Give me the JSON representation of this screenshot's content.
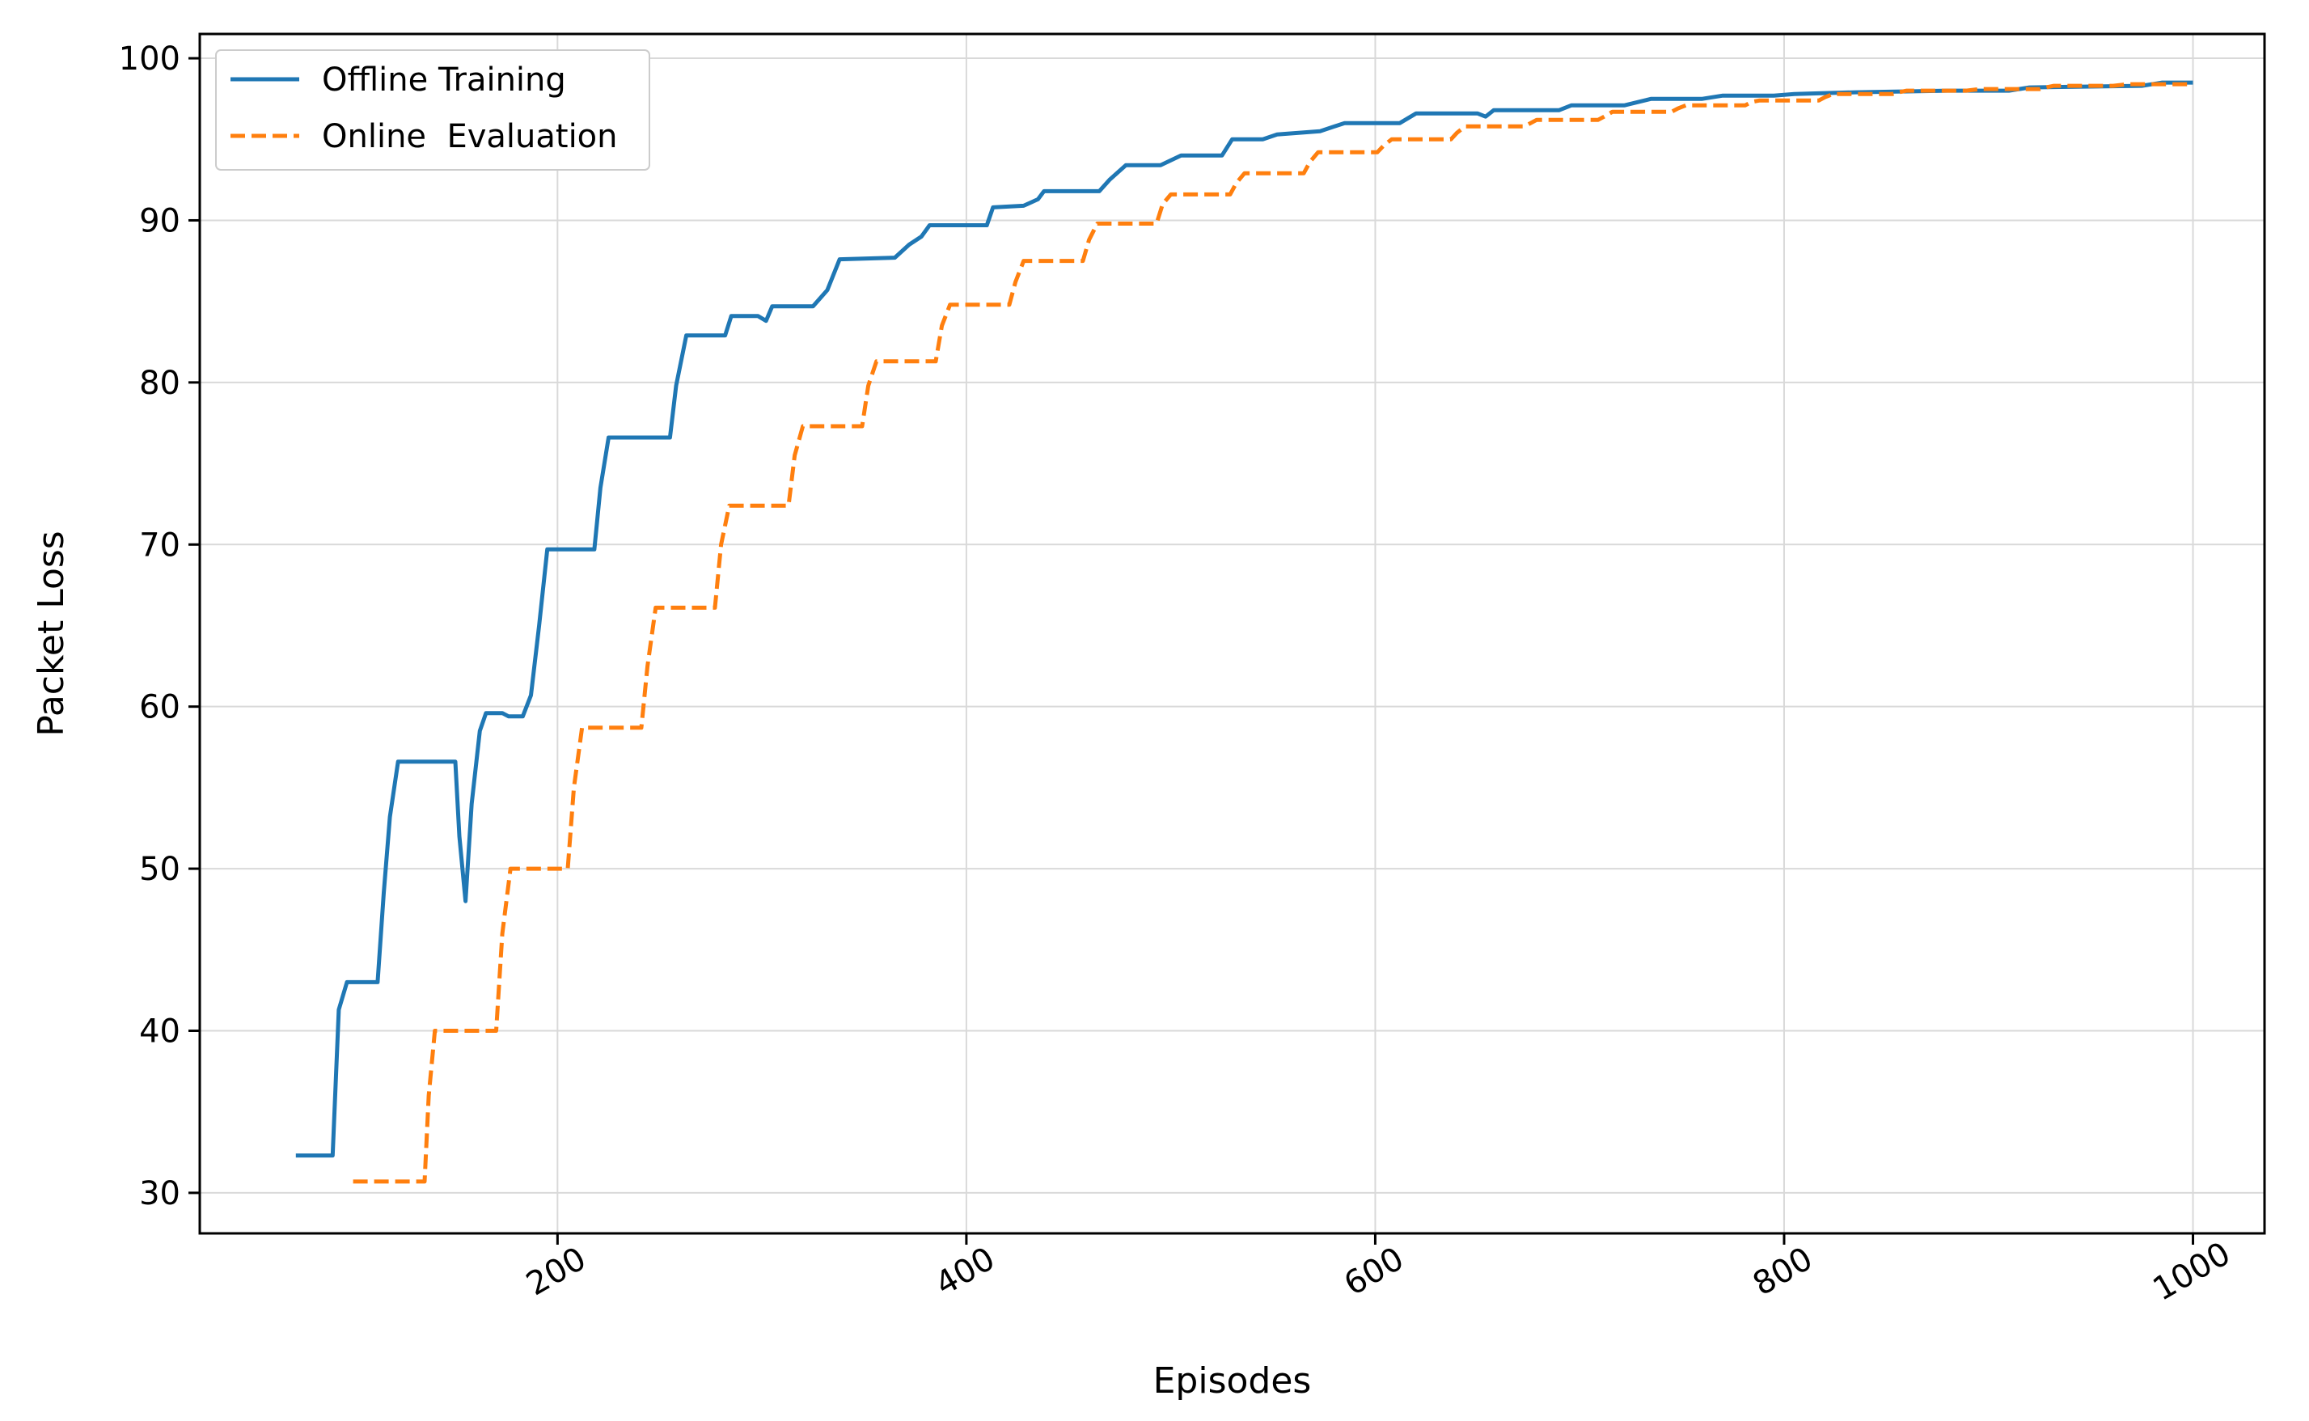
{
  "chart_data": {
    "type": "line",
    "xlabel": "Episodes",
    "ylabel": "Packet Loss",
    "xlim": [
      25,
      1035
    ],
    "ylim": [
      27.5,
      101.5
    ],
    "xticks": [
      200,
      400,
      600,
      800,
      1000
    ],
    "yticks": [
      30,
      40,
      50,
      60,
      70,
      80,
      90,
      100
    ],
    "grid": true,
    "legend_position": "top-left",
    "colors": {
      "offline": "#1f77b4",
      "online": "#ff7f0e",
      "grid": "#d9d9d9"
    },
    "series": [
      {
        "name": "Offline Training",
        "style": "solid",
        "points": [
          [
            72,
            32.3
          ],
          [
            90,
            32.3
          ],
          [
            93,
            41.3
          ],
          [
            97,
            43.0
          ],
          [
            112,
            43.0
          ],
          [
            115,
            48.5
          ],
          [
            118,
            53.2
          ],
          [
            122,
            56.6
          ],
          [
            150,
            56.6
          ],
          [
            152,
            52.0
          ],
          [
            155,
            48.0
          ],
          [
            158,
            54.0
          ],
          [
            162,
            58.5
          ],
          [
            165,
            59.6
          ],
          [
            173,
            59.6
          ],
          [
            176,
            59.4
          ],
          [
            183,
            59.4
          ],
          [
            187,
            60.7
          ],
          [
            191,
            65.0
          ],
          [
            195,
            69.7
          ],
          [
            218,
            69.7
          ],
          [
            221,
            73.5
          ],
          [
            225,
            76.6
          ],
          [
            255,
            76.6
          ],
          [
            258,
            79.8
          ],
          [
            263,
            82.9
          ],
          [
            282,
            82.9
          ],
          [
            285,
            84.1
          ],
          [
            298,
            84.1
          ],
          [
            302,
            83.8
          ],
          [
            305,
            84.7
          ],
          [
            325,
            84.7
          ],
          [
            332,
            85.7
          ],
          [
            338,
            87.6
          ],
          [
            365,
            87.7
          ],
          [
            372,
            88.5
          ],
          [
            378,
            89.0
          ],
          [
            382,
            89.7
          ],
          [
            410,
            89.7
          ],
          [
            413,
            90.8
          ],
          [
            428,
            90.9
          ],
          [
            435,
            91.3
          ],
          [
            438,
            91.8
          ],
          [
            465,
            91.8
          ],
          [
            470,
            92.5
          ],
          [
            478,
            93.4
          ],
          [
            495,
            93.4
          ],
          [
            505,
            94.0
          ],
          [
            525,
            94.0
          ],
          [
            530,
            95.0
          ],
          [
            545,
            95.0
          ],
          [
            552,
            95.3
          ],
          [
            573,
            95.5
          ],
          [
            585,
            96.0
          ],
          [
            612,
            96.0
          ],
          [
            620,
            96.6
          ],
          [
            650,
            96.6
          ],
          [
            654,
            96.4
          ],
          [
            658,
            96.8
          ],
          [
            690,
            96.8
          ],
          [
            696,
            97.1
          ],
          [
            722,
            97.1
          ],
          [
            735,
            97.5
          ],
          [
            760,
            97.5
          ],
          [
            770,
            97.7
          ],
          [
            795,
            97.7
          ],
          [
            805,
            97.8
          ],
          [
            835,
            97.9
          ],
          [
            880,
            98.0
          ],
          [
            910,
            98.0
          ],
          [
            920,
            98.2
          ],
          [
            975,
            98.3
          ],
          [
            985,
            98.5
          ],
          [
            1000,
            98.5
          ]
        ]
      },
      {
        "name": "Online  Evaluation",
        "style": "dashed",
        "points": [
          [
            100,
            30.7
          ],
          [
            135,
            30.7
          ],
          [
            137,
            36.0
          ],
          [
            140,
            40.0
          ],
          [
            170,
            40.0
          ],
          [
            173,
            46.0
          ],
          [
            177,
            50.0
          ],
          [
            205,
            50.0
          ],
          [
            208,
            55.0
          ],
          [
            212,
            58.7
          ],
          [
            241,
            58.7
          ],
          [
            244,
            62.5
          ],
          [
            248,
            66.1
          ],
          [
            277,
            66.1
          ],
          [
            280,
            70.0
          ],
          [
            284,
            72.4
          ],
          [
            313,
            72.4
          ],
          [
            316,
            75.5
          ],
          [
            320,
            77.3
          ],
          [
            349,
            77.3
          ],
          [
            352,
            79.8
          ],
          [
            356,
            81.3
          ],
          [
            385,
            81.3
          ],
          [
            388,
            83.5
          ],
          [
            392,
            84.8
          ],
          [
            421,
            84.8
          ],
          [
            424,
            86.2
          ],
          [
            428,
            87.5
          ],
          [
            457,
            87.5
          ],
          [
            460,
            88.8
          ],
          [
            464,
            89.8
          ],
          [
            493,
            89.8
          ],
          [
            496,
            91.0
          ],
          [
            500,
            91.6
          ],
          [
            529,
            91.6
          ],
          [
            532,
            92.3
          ],
          [
            536,
            92.9
          ],
          [
            565,
            92.9
          ],
          [
            568,
            93.6
          ],
          [
            572,
            94.2
          ],
          [
            601,
            94.2
          ],
          [
            604,
            94.6
          ],
          [
            608,
            95.0
          ],
          [
            637,
            95.0
          ],
          [
            640,
            95.4
          ],
          [
            644,
            95.8
          ],
          [
            673,
            95.8
          ],
          [
            679,
            96.2
          ],
          [
            709,
            96.2
          ],
          [
            712,
            96.4
          ],
          [
            716,
            96.7
          ],
          [
            745,
            96.7
          ],
          [
            748,
            96.9
          ],
          [
            752,
            97.1
          ],
          [
            781,
            97.1
          ],
          [
            784,
            97.3
          ],
          [
            788,
            97.4
          ],
          [
            817,
            97.4
          ],
          [
            820,
            97.6
          ],
          [
            824,
            97.8
          ],
          [
            853,
            97.8
          ],
          [
            856,
            97.9
          ],
          [
            860,
            98.0
          ],
          [
            889,
            98.0
          ],
          [
            896,
            98.1
          ],
          [
            925,
            98.1
          ],
          [
            928,
            98.2
          ],
          [
            932,
            98.3
          ],
          [
            961,
            98.3
          ],
          [
            968,
            98.4
          ],
          [
            1000,
            98.4
          ]
        ]
      }
    ]
  }
}
